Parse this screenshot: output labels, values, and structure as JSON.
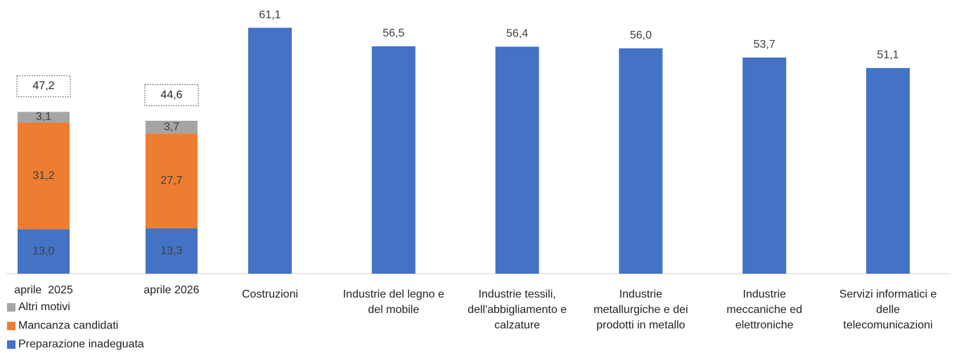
{
  "chart_data": [
    {
      "type": "stacked_bar",
      "categories": [
        "aprile  2025",
        "aprile 2026"
      ],
      "series": [
        {
          "name": "Preparazione inadeguata",
          "color": "#4472c4",
          "values": [
            13.0,
            13.3
          ],
          "value_labels": [
            "13,0",
            "13,3"
          ]
        },
        {
          "name": "Mancanza candidati",
          "color": "#ed7d31",
          "values": [
            31.2,
            27.7
          ],
          "value_labels": [
            "31,2",
            "27,7"
          ]
        },
        {
          "name": "Altri motivi",
          "color": "#a5a5a5",
          "values": [
            3.1,
            3.7
          ],
          "value_labels": [
            "3,1",
            "3,7"
          ]
        }
      ],
      "totals": [
        47.2,
        44.6
      ],
      "total_labels": [
        "47,2",
        "44,6"
      ],
      "ylim": [
        0,
        80
      ],
      "legend": "bottom"
    },
    {
      "type": "bar",
      "categories": [
        [
          "Costruzioni"
        ],
        [
          "Industrie del legno e",
          "del mobile"
        ],
        [
          "Industrie tessili,",
          "dell'abbigliamento e",
          "calzature"
        ],
        [
          "Industrie",
          "metallurgiche e dei",
          "prodotti in metallo"
        ],
        [
          "Industrie",
          "meccaniche ed",
          "elettroniche"
        ],
        [
          "Servizi informatici e",
          "delle",
          "telecomunicazioni"
        ]
      ],
      "values": [
        61.1,
        56.5,
        56.4,
        56.0,
        53.7,
        51.1
      ],
      "value_labels": [
        "61,1",
        "56,5",
        "56,4",
        "56,0",
        "53,7",
        "51,1"
      ],
      "color": "#4472c4",
      "ylim": [
        0,
        68
      ]
    }
  ]
}
